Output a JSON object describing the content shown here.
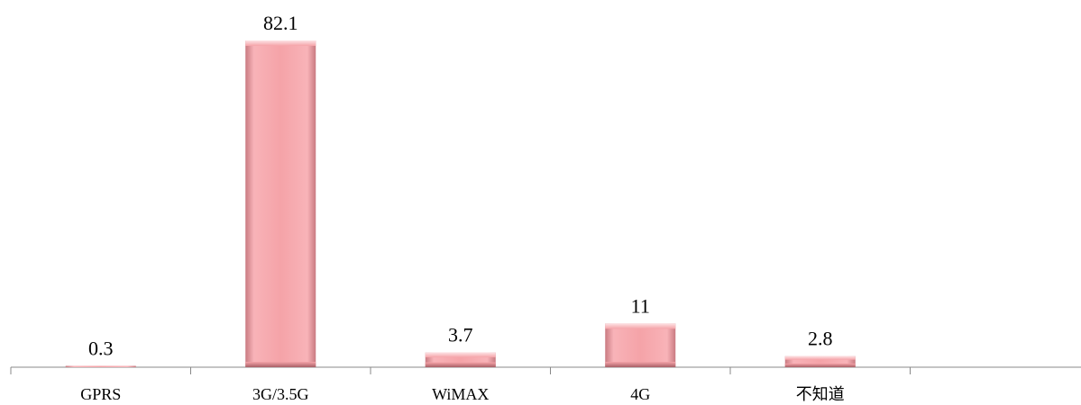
{
  "chart_data": {
    "type": "bar",
    "categories": [
      "GPRS",
      "3G/3.5G",
      "WiMAX",
      "4G",
      "不知道"
    ],
    "values": [
      0.3,
      82.1,
      3.7,
      11,
      2.8
    ],
    "data_labels": [
      "0.3",
      "82.1",
      "3.7",
      "11",
      "2.8"
    ],
    "title": "",
    "xlabel": "",
    "ylabel": "",
    "ylim": [
      0,
      82.1
    ],
    "grid": false,
    "legend": "none",
    "colors": {
      "bar_fill": "#f5a3a8",
      "bar_light": "#fbcfd2",
      "bar_dark": "#b86b72",
      "axis": "#888888"
    }
  }
}
